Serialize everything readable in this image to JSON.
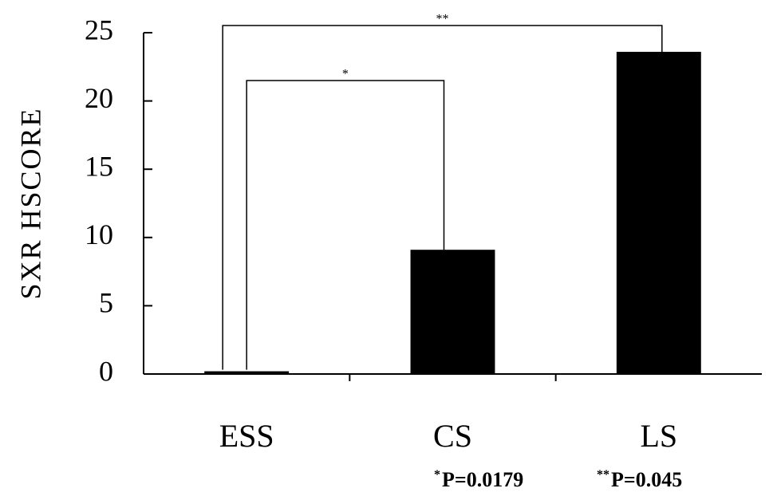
{
  "chart_data": {
    "type": "bar",
    "ylabel": "SXR HSCORE",
    "categories": [
      "ESS",
      "CS",
      "LS"
    ],
    "values": [
      0.2,
      9.1,
      23.6
    ],
    "color": "#000000",
    "ylim": [
      0,
      25
    ],
    "yticks": [
      0,
      5,
      10,
      15,
      20,
      25
    ],
    "grid": false,
    "significance": [
      {
        "from": 0,
        "to": 1,
        "text": "*"
      },
      {
        "from": 0,
        "to": 2,
        "text": "**"
      }
    ],
    "footnotes": [
      {
        "mark": "*",
        "text": "P=0.0179"
      },
      {
        "mark": "**",
        "text": "P=0.045"
      }
    ]
  }
}
